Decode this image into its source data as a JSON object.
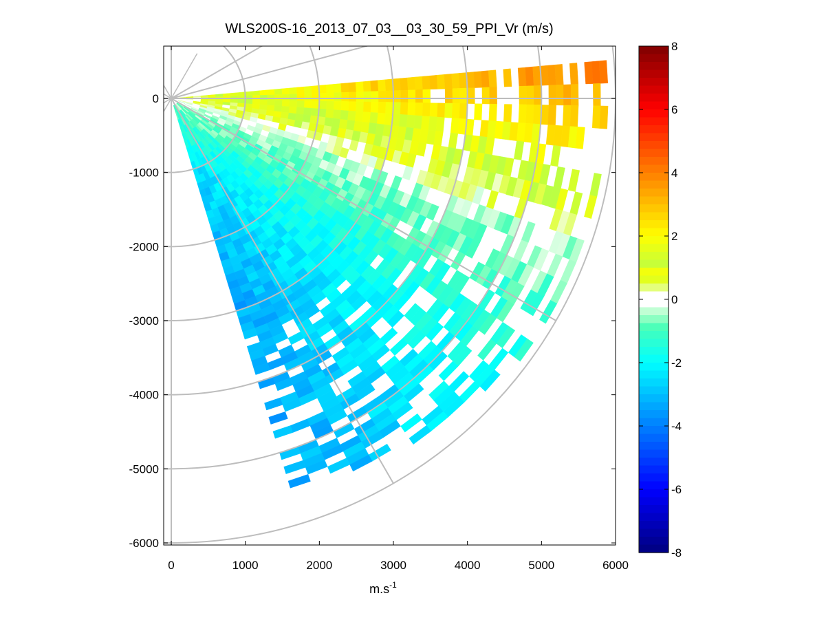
{
  "chart_data": {
    "type": "heatmap",
    "subtype": "ppi-scan",
    "title": "WLS200S-16_2013_07_03__03_30_59_PPI_Vr (m/s)",
    "xlabel": "m.s",
    "xlabel_sup": "-1",
    "ylabel": "",
    "xlim": [
      0,
      6000
    ],
    "ylim": [
      -6000,
      600
    ],
    "x_ticks": [
      0,
      1000,
      2000,
      3000,
      4000,
      5000,
      6000
    ],
    "y_ticks": [
      0,
      -1000,
      -2000,
      -3000,
      -4000,
      -5000,
      -6000
    ],
    "colorbar": {
      "min": -8,
      "max": 8,
      "ticks": [
        8,
        6,
        4,
        2,
        0,
        -2,
        -4,
        -6,
        -8
      ]
    },
    "scan": {
      "azimuth_start_deg": -5,
      "azimuth_end_deg": 72,
      "range_min_m": 100,
      "range_max_m": 5900,
      "azimuth_step_deg": 3,
      "gate_length_m": 100
    },
    "range_rings_m": [
      1000,
      2000,
      3000,
      4000,
      5000,
      6000
    ],
    "radial_lines_deg": [
      -30,
      -15,
      0,
      30,
      60
    ],
    "velocity_samples": [
      {
        "azimuth_deg": 0,
        "range_m": 5500,
        "vr": 2.5
      },
      {
        "azimuth_deg": 0,
        "range_m": 4000,
        "vr": 1.2
      },
      {
        "azimuth_deg": 10,
        "range_m": 4500,
        "vr": 0.6
      },
      {
        "azimuth_deg": 20,
        "range_m": 3000,
        "vr": -0.5
      },
      {
        "azimuth_deg": 30,
        "range_m": 2000,
        "vr": -2.0
      },
      {
        "azimuth_deg": 45,
        "range_m": 3500,
        "vr": -3.0
      },
      {
        "azimuth_deg": 60,
        "range_m": 4500,
        "vr": -3.8
      },
      {
        "azimuth_deg": 70,
        "range_m": 5000,
        "vr": -3.6
      }
    ]
  }
}
